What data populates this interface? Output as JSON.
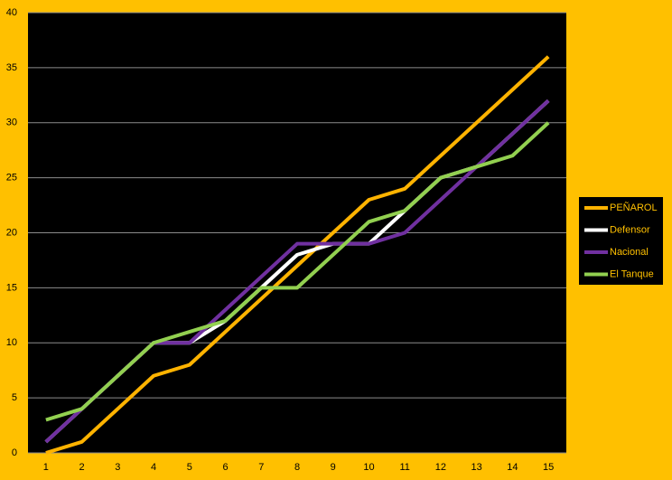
{
  "chart_data": {
    "type": "line",
    "categories": [
      1,
      2,
      3,
      4,
      5,
      6,
      7,
      8,
      9,
      10,
      11,
      12,
      13,
      14,
      15
    ],
    "series": [
      {
        "name": "PEÑAROL",
        "color": "#FFB300",
        "values": [
          0,
          1,
          4,
          7,
          8,
          11,
          14,
          17,
          20,
          23,
          24,
          27,
          30,
          33,
          36
        ]
      },
      {
        "name": "Defensor",
        "color": "#FFFFFF",
        "values": [
          1,
          4,
          7,
          10,
          10,
          12,
          15,
          18,
          19,
          19,
          22,
          25,
          26,
          29,
          32
        ]
      },
      {
        "name": "Nacional",
        "color": "#7030A0",
        "values": [
          1,
          4,
          7,
          10,
          10,
          13,
          16,
          19,
          19,
          19,
          20,
          23,
          26,
          29,
          32
        ]
      },
      {
        "name": "El Tanque",
        "color": "#92D050",
        "values": [
          3,
          4,
          7,
          10,
          11,
          12,
          15,
          15,
          18,
          21,
          22,
          25,
          26,
          27,
          30
        ]
      }
    ],
    "ylim": [
      0,
      40
    ],
    "yticks": [
      0,
      5,
      10,
      15,
      20,
      25,
      30,
      35,
      40
    ],
    "grid": true,
    "legend": "right"
  }
}
